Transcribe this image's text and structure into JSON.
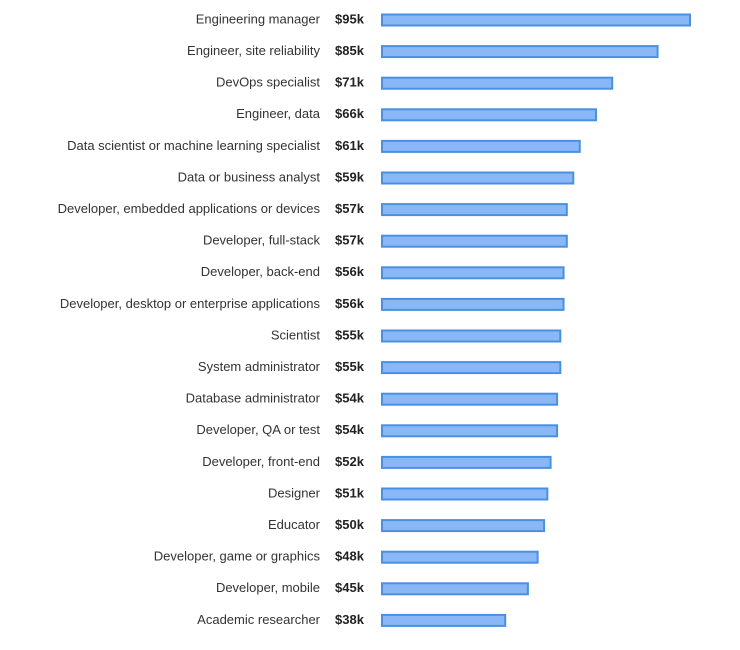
{
  "chart_data": {
    "type": "bar",
    "orientation": "horizontal",
    "categories": [
      "Engineering manager",
      "Engineer, site reliability",
      "DevOps specialist",
      "Engineer, data",
      "Data scientist or machine learning specialist",
      "Data or business analyst",
      "Developer, embedded applications or devices",
      "Developer, full-stack",
      "Developer, back-end",
      "Developer, desktop or enterprise applications",
      "Scientist",
      "System administrator",
      "Database administrator",
      "Developer, QA or test",
      "Developer, front-end",
      "Designer",
      "Educator",
      "Developer, game or graphics",
      "Developer, mobile",
      "Academic researcher"
    ],
    "values": [
      95,
      85,
      71,
      66,
      61,
      59,
      57,
      57,
      56,
      56,
      55,
      55,
      54,
      54,
      52,
      51,
      50,
      48,
      45,
      38
    ],
    "value_labels": [
      "$95k",
      "$85k",
      "$71k",
      "$66k",
      "$61k",
      "$59k",
      "$57k",
      "$57k",
      "$56k",
      "$56k",
      "$55k",
      "$55k",
      "$54k",
      "$54k",
      "$52k",
      "$51k",
      "$50k",
      "$48k",
      "$45k",
      "$38k"
    ],
    "color": "#8ab8f7",
    "edge_color": "#4a90e2"
  }
}
